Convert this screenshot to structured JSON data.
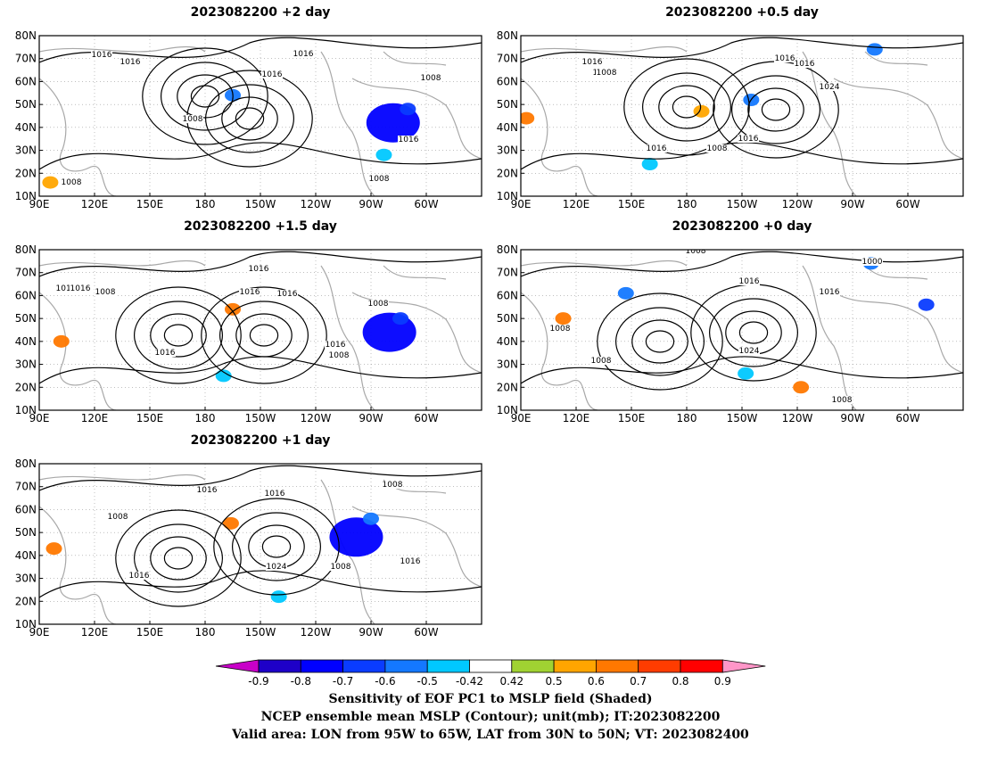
{
  "panels": [
    {
      "id": "p2",
      "title": "2023082200 +2 day",
      "contour_labels": [
        "1016",
        "1016",
        "1016",
        "1016",
        "1008",
        "1008",
        "1016",
        "1008",
        "1008"
      ],
      "shading": [
        {
          "lon": -78,
          "lat": 42,
          "value": -0.8
        },
        {
          "lon": -70,
          "lat": 48,
          "value": -0.7
        },
        {
          "lon": -165,
          "lat": 54,
          "value": -0.6
        },
        {
          "lon": -83,
          "lat": 28,
          "value": -0.5
        },
        {
          "lon": 96,
          "lat": 16,
          "value": 0.5
        }
      ]
    },
    {
      "id": "p05",
      "title": "2023082200 +0.5 day",
      "contour_labels": [
        "1016",
        "1008",
        "1008",
        "1016",
        "1016",
        "1024",
        "1016",
        "1008",
        "1016"
      ],
      "shading": [
        {
          "lon": -78,
          "lat": 74,
          "value": -0.6
        },
        {
          "lon": -145,
          "lat": 52,
          "value": -0.6
        },
        {
          "lon": 93,
          "lat": 44,
          "value": 0.6
        },
        {
          "lon": 160,
          "lat": 24,
          "value": -0.5
        },
        {
          "lon": -172,
          "lat": 47,
          "value": 0.5
        }
      ]
    },
    {
      "id": "p15",
      "title": "2023082200 +1.5 day",
      "contour_labels": [
        "1016",
        "1016",
        "1016",
        "1016",
        "1016",
        "1008",
        "1016",
        "1016",
        "1008",
        "1008"
      ],
      "shading": [
        {
          "lon": -80,
          "lat": 44,
          "value": -0.8
        },
        {
          "lon": -74,
          "lat": 50,
          "value": -0.7
        },
        {
          "lon": -165,
          "lat": 54,
          "value": 0.6
        },
        {
          "lon": -170,
          "lat": 25,
          "value": -0.5
        },
        {
          "lon": 102,
          "lat": 40,
          "value": 0.6
        }
      ]
    },
    {
      "id": "p0",
      "title": "2023082200 +0 day",
      "contour_labels": [
        "1008",
        "1000",
        "1016",
        "1016",
        "1008",
        "1008",
        "1024",
        "1008"
      ],
      "shading": [
        {
          "lon": -50,
          "lat": 56,
          "value": -0.7
        },
        {
          "lon": -80,
          "lat": 74,
          "value": -0.6
        },
        {
          "lon": 147,
          "lat": 61,
          "value": -0.6
        },
        {
          "lon": -118,
          "lat": 20,
          "value": 0.6
        },
        {
          "lon": 113,
          "lat": 50,
          "value": 0.6
        },
        {
          "lon": -148,
          "lat": 26,
          "value": -0.5
        }
      ]
    },
    {
      "id": "p1",
      "title": "2023082200 +1 day",
      "contour_labels": [
        "1016",
        "1016",
        "1008",
        "1008",
        "1016",
        "1024",
        "1008",
        "1016"
      ],
      "shading": [
        {
          "lon": -98,
          "lat": 48,
          "value": -0.8
        },
        {
          "lon": -90,
          "lat": 56,
          "value": -0.6
        },
        {
          "lon": -166,
          "lat": 54,
          "value": 0.6
        },
        {
          "lon": -140,
          "lat": 22,
          "value": -0.5
        },
        {
          "lon": 98,
          "lat": 43,
          "value": 0.6
        }
      ]
    }
  ],
  "axes": {
    "x_ticks": [
      "90E",
      "120E",
      "150E",
      "180",
      "150W",
      "120W",
      "90W",
      "60W"
    ],
    "y_ticks": [
      "80N",
      "70N",
      "60N",
      "50N",
      "40N",
      "30N",
      "20N",
      "10N"
    ]
  },
  "colorbar": {
    "labels": [
      "-0.9",
      "-0.8",
      "-0.7",
      "-0.6",
      "-0.5",
      "-0.42",
      "0.42",
      "0.5",
      "0.6",
      "0.7",
      "0.8",
      "0.9"
    ],
    "colors": [
      "#c800c8",
      "#1e00c8",
      "#0000ff",
      "#0a3cff",
      "#1478ff",
      "#00c8ff",
      "#ffffff",
      "#a0d232",
      "#ffa500",
      "#ff7800",
      "#ff3c00",
      "#ff0000",
      "#ff96c8"
    ]
  },
  "captions": {
    "line1": "Sensitivity of EOF PC1 to MSLP field (Shaded)",
    "line2": "NCEP ensemble mean MSLP (Contour); unit(mb); IT:2023082200",
    "line3": "Valid area: LON from 95W to 65W, LAT from 30N to 50N; VT: 2023082400"
  }
}
